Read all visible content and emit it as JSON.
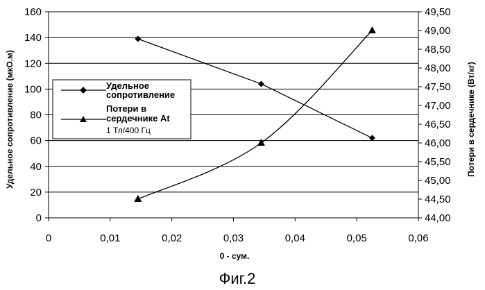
{
  "chart_data": {
    "type": "line",
    "xlabel": "0 - сум.",
    "ylabel_left": "Удельное сопротивление (мкО.м)",
    "ylabel_right": "Потери в сердечнике (Вт/кг)",
    "caption": "Фиг.2",
    "xlim": [
      0,
      0.06
    ],
    "ylim_left": [
      0,
      160
    ],
    "ylim_right": [
      44.0,
      49.5
    ],
    "x_ticks": [
      "0",
      "0,01",
      "0,02",
      "0,03",
      "0,04",
      "0,05",
      "0,06"
    ],
    "y_left_ticks": [
      "0",
      "20",
      "40",
      "60",
      "80",
      "100",
      "120",
      "140",
      "160"
    ],
    "y_right_ticks": [
      "44,00",
      "44,50",
      "45,00",
      "45,50",
      "46,00",
      "46,50",
      "47,00",
      "47,50",
      "48,00",
      "48,50",
      "49,00",
      "49,50"
    ],
    "grid": true,
    "legend_placement": "left",
    "series": [
      {
        "name_line1": "Удельное",
        "name_line2": "сопротивление",
        "marker": "diamond",
        "axis": "left",
        "x": [
          0.0145,
          0.0345,
          0.0525
        ],
        "y": [
          139,
          104,
          62
        ]
      },
      {
        "name_line1": "Потери в",
        "name_line2": "сердечнике At",
        "name_line3": "1 Тл/400 Гц",
        "marker": "triangle",
        "axis": "right",
        "x": [
          0.0145,
          0.0345,
          0.0525
        ],
        "y": [
          44.5,
          46.0,
          49.0
        ]
      }
    ]
  }
}
